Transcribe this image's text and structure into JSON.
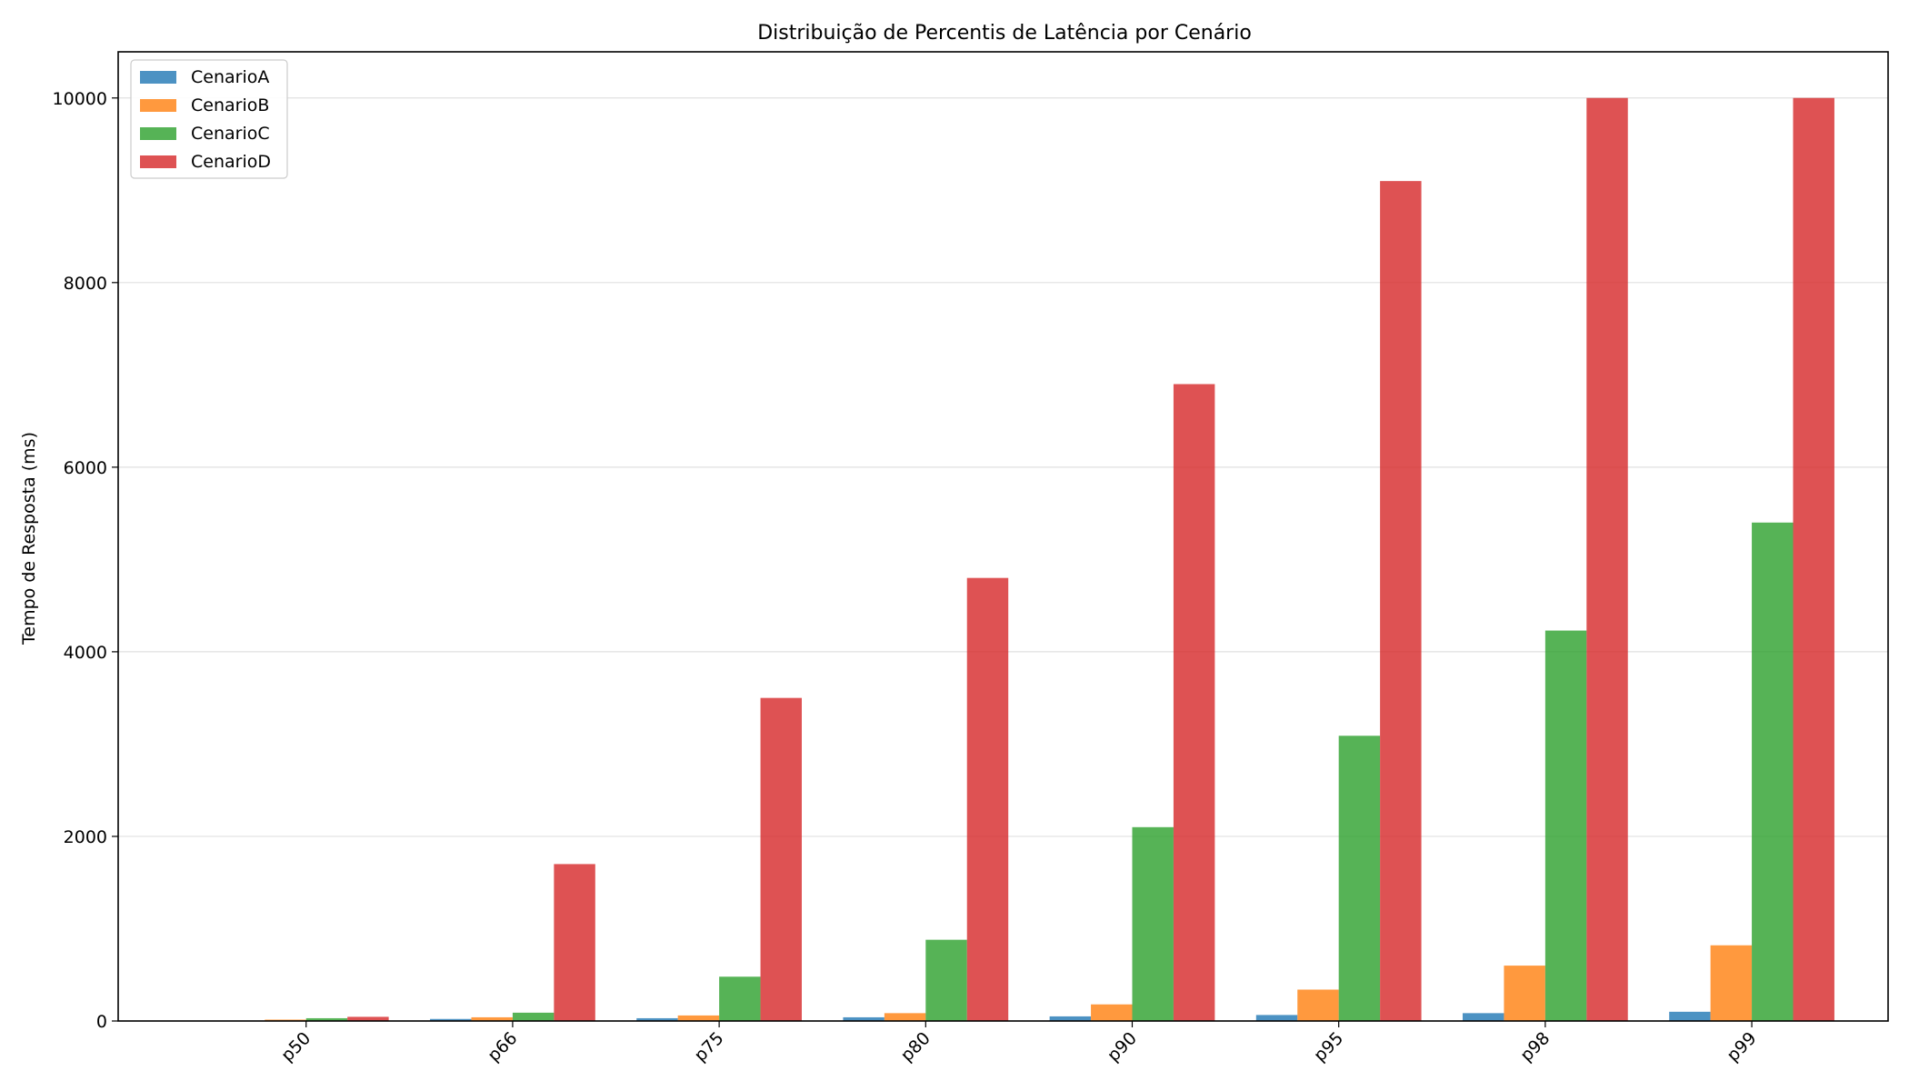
{
  "chart_data": {
    "type": "bar",
    "title": "Distribuição de Percentis de Latência por Cenário",
    "xlabel": "",
    "ylabel": "Tempo de Resposta (ms)",
    "ylim": [
      0,
      10500
    ],
    "yticks": [
      0,
      2000,
      4000,
      6000,
      8000,
      10000
    ],
    "grid": "y",
    "legend_position": "top-left",
    "categories": [
      "p50",
      "p66",
      "p75",
      "p80",
      "p90",
      "p95",
      "p98",
      "p99"
    ],
    "series": [
      {
        "name": "CenarioA",
        "color": "#1f77b4",
        "values": [
          5,
          22,
          30,
          40,
          50,
          65,
          85,
          100
        ]
      },
      {
        "name": "CenarioB",
        "color": "#ff7f0e",
        "values": [
          15,
          40,
          60,
          85,
          180,
          340,
          600,
          820
        ]
      },
      {
        "name": "CenarioC",
        "color": "#2ca02c",
        "values": [
          30,
          90,
          480,
          880,
          2100,
          3090,
          4230,
          5400
        ]
      },
      {
        "name": "CenarioD",
        "color": "#d62728",
        "values": [
          45,
          1700,
          3500,
          4800,
          6900,
          9100,
          10000,
          10000
        ]
      }
    ]
  }
}
